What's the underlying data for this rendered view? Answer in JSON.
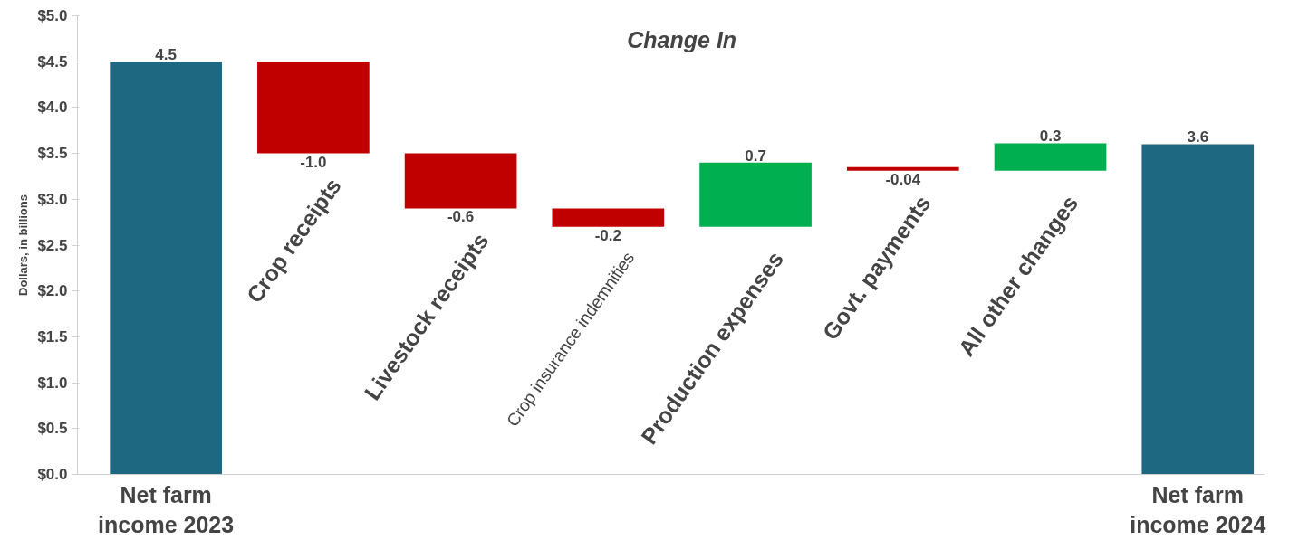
{
  "chart_data": {
    "type": "bar",
    "title": "Change In",
    "ylabel": "Dollars, in billions",
    "categories": [
      "Net farm\nincome 2023",
      "Crop receipts",
      "Livestock receipts",
      "Crop insurance indemnities",
      "Production expenses",
      "Govt. payments",
      "All other changes",
      "Net farm\nincome 2024"
    ],
    "values": [
      4.5,
      -1.0,
      -0.6,
      -0.2,
      0.7,
      -0.04,
      0.3,
      3.6
    ],
    "base": [
      0,
      4.5,
      3.5,
      2.9,
      2.7,
      3.35,
      3.31,
      0
    ],
    "colors": [
      "#1f6882",
      "#c00000",
      "#c00000",
      "#c00000",
      "#00b050",
      "#c00000",
      "#00b050",
      "#1f6882"
    ],
    "ylim": [
      0,
      5.0
    ],
    "yticks": [
      {
        "value": 0,
        "label": "$0.0"
      },
      {
        "value": 0.5,
        "label": "$0.5"
      },
      {
        "value": 1.0,
        "label": "$1.0"
      },
      {
        "value": 1.5,
        "label": "$1.5"
      },
      {
        "value": 2.0,
        "label": "$2.0"
      },
      {
        "value": 2.5,
        "label": "$2.5"
      },
      {
        "value": 3.0,
        "label": "$3.0"
      },
      {
        "value": 3.5,
        "label": "$3.5"
      },
      {
        "value": 4.0,
        "label": "$4.0"
      },
      {
        "value": 4.5,
        "label": "$4.5"
      },
      {
        "value": 5.0,
        "label": "$5.0"
      }
    ],
    "value_labels": [
      "4.5",
      "-1.0",
      "-0.6",
      "-0.2",
      "0.7",
      "-0.04",
      "0.3",
      "3.6"
    ],
    "grid": false
  }
}
